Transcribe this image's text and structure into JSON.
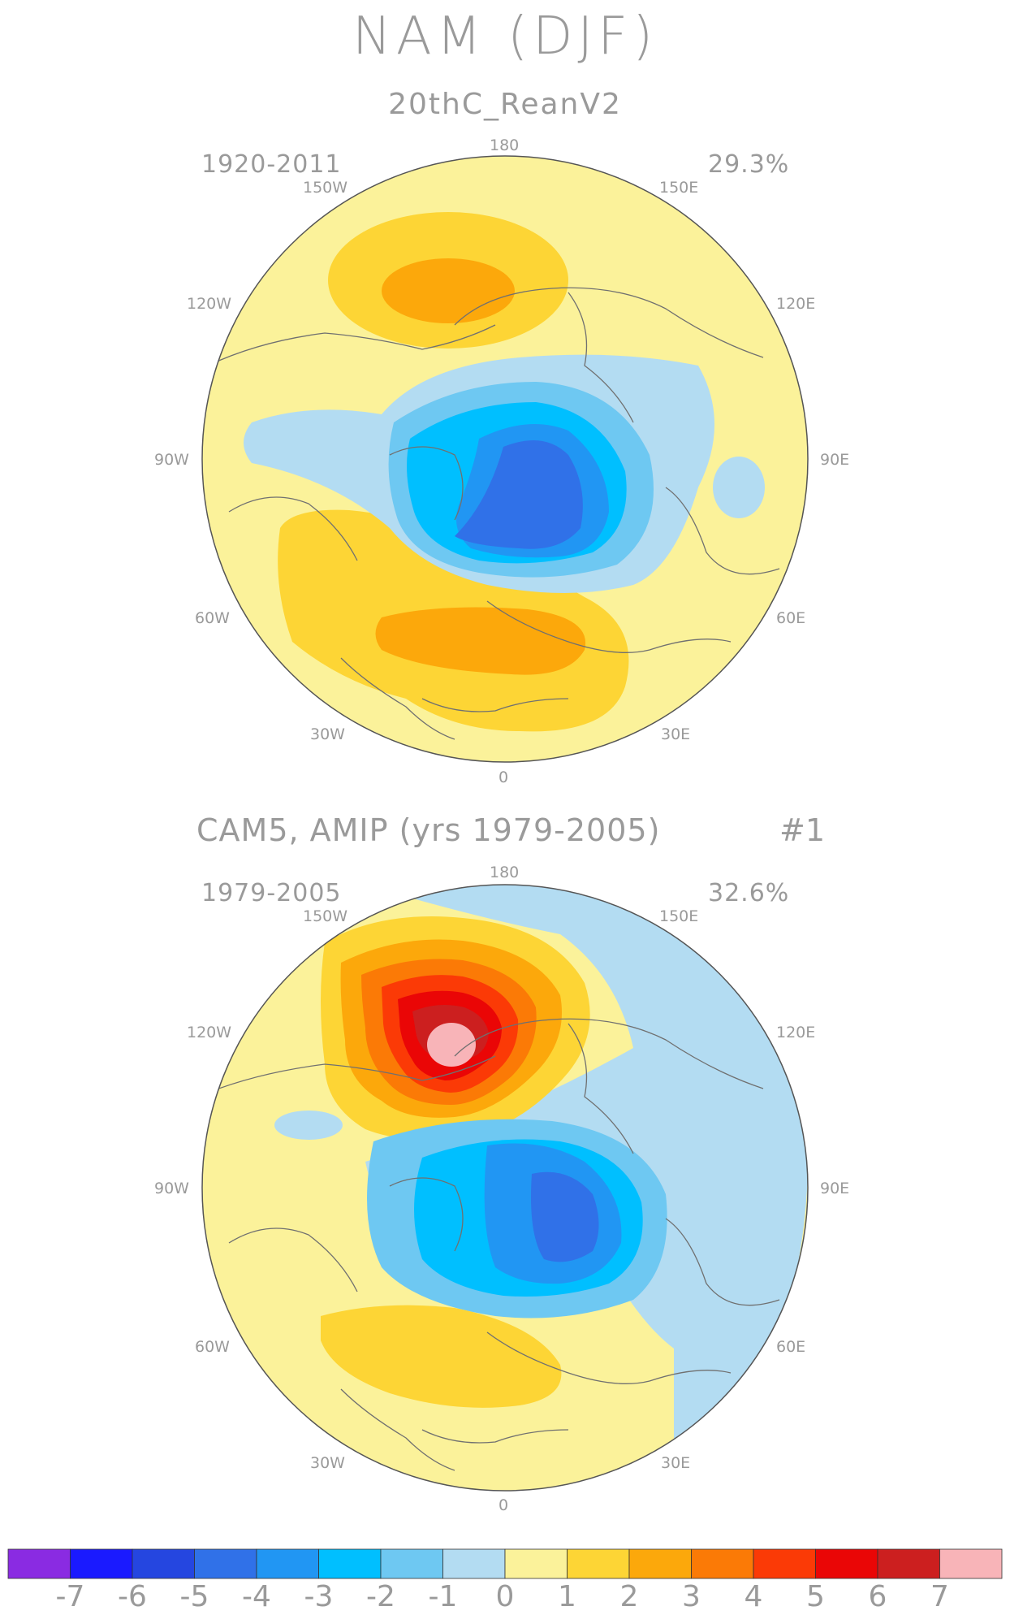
{
  "title": "NAM (DJF)",
  "panels": [
    {
      "subtitle": "20thC_ReanV2",
      "period": "1920-2011",
      "variance": "29.3%",
      "lon_labels": {
        "top": "180",
        "bottom": "0",
        "w150": "150W",
        "e150": "150E",
        "w120": "120W",
        "e120": "120E",
        "w90": "90W",
        "e90": "90E",
        "w60": "60W",
        "e60": "60E",
        "w30": "30W",
        "e30": "30E"
      }
    },
    {
      "subtitle": "CAM5, AMIP (yrs 1979-2005)",
      "member": "#1",
      "period": "1979-2005",
      "variance": "32.6%",
      "lon_labels": {
        "top": "180",
        "bottom": "0",
        "w150": "150W",
        "e150": "150E",
        "w120": "120W",
        "e120": "120E",
        "w90": "90W",
        "e90": "90E",
        "w60": "60W",
        "e60": "60E",
        "w30": "30W",
        "e30": "30E"
      }
    }
  ],
  "colorbar": {
    "labels": [
      "-7",
      "-6",
      "-5",
      "-4",
      "-3",
      "-2",
      "-1",
      "0",
      "1",
      "2",
      "3",
      "4",
      "5",
      "6",
      "7"
    ],
    "colors": [
      "#8a2be2",
      "#1a1aff",
      "#2546e0",
      "#3071e8",
      "#2196f3",
      "#00bfff",
      "#6ec8f2",
      "#b3dcf2",
      "#fbf29a",
      "#fdd535",
      "#fca80b",
      "#fb7a06",
      "#fb3a06",
      "#ea0606",
      "#cc1f1f",
      "#f8b4b8"
    ]
  }
}
